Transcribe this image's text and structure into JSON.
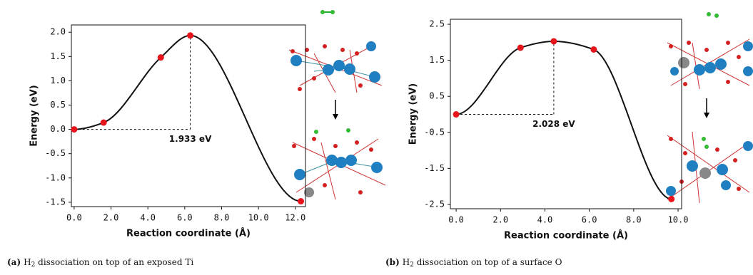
{
  "chart_data": [
    {
      "type": "line",
      "caption_label": "(a)",
      "caption_pre": "H",
      "caption_sub": "2",
      "caption_post": " dissociation on top of an exposed Ti",
      "xlabel": "Reaction coordinate (Å)",
      "ylabel": "Energy (eV)",
      "annotation": "1.933 eV",
      "x": [
        0,
        1.6,
        4.7,
        6.3,
        12.3
      ],
      "values": [
        0,
        0.14,
        1.48,
        1.933,
        -1.48
      ],
      "color": "#111111",
      "marker_color": "#e8141b",
      "xlim": [
        -0.15,
        12.55
      ],
      "ylim": [
        -1.59,
        2.15
      ],
      "xticks": [
        {
          "value": 0,
          "label": "0.0"
        },
        {
          "value": 2,
          "label": "2.0"
        },
        {
          "value": 4,
          "label": "4.0"
        },
        {
          "value": 6,
          "label": "6.0"
        },
        {
          "value": 8,
          "label": "8.0"
        },
        {
          "value": 10,
          "label": "10.0"
        },
        {
          "value": 12,
          "label": "12.0"
        }
      ],
      "yticks": [
        -1.5,
        {
          "value": -1,
          "label": "-1.0"
        },
        -0.5,
        {
          "value": 0,
          "label": "0.0"
        },
        0.5,
        {
          "value": 1,
          "label": "1.0"
        },
        1.5,
        {
          "value": 2,
          "label": "2.0"
        }
      ]
    },
    {
      "type": "line",
      "caption_label": "(b)",
      "caption_pre": "H",
      "caption_sub": "2",
      "caption_post": " dissociation on top of a surface O",
      "xlabel": "Reaction coordinate (Å)",
      "ylabel": "Energy (eV)",
      "annotation": "2.028 eV",
      "x": [
        0,
        2.9,
        4.4,
        6.2,
        9.7
      ],
      "values": [
        0,
        1.85,
        2.028,
        1.8,
        -2.35
      ],
      "color": "#111111",
      "marker_color": "#e8141b",
      "xlim": [
        -0.26,
        10.16
      ],
      "ylim": [
        -2.62,
        2.64
      ],
      "xticks": [
        {
          "value": 0,
          "label": "0.0"
        },
        {
          "value": 2,
          "label": "2.0"
        },
        {
          "value": 4,
          "label": "4.0"
        },
        {
          "value": 6,
          "label": "6.0"
        },
        {
          "value": 8,
          "label": "8.0"
        },
        {
          "value": 10,
          "label": "10.0"
        }
      ],
      "yticks": [
        -2.5,
        -1.5,
        -0.5,
        0.5,
        1.5,
        2.5
      ]
    }
  ]
}
